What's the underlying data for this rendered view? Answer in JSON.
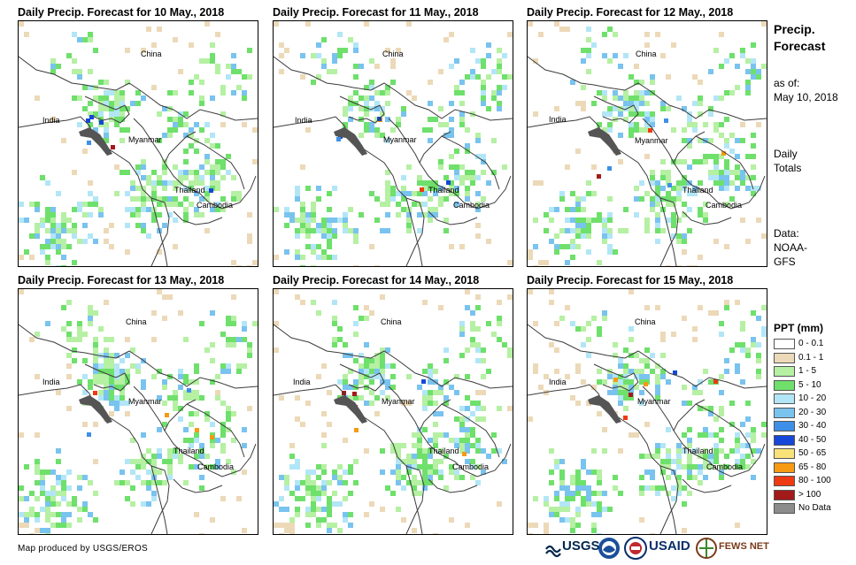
{
  "panels": [
    {
      "title": "Daily Precip. Forecast for 10 May., 2018"
    },
    {
      "title": "Daily Precip. Forecast for 11 May., 2018"
    },
    {
      "title": "Daily Precip. Forecast for 12 May., 2018"
    },
    {
      "title": "Daily Precip. Forecast for 13 May., 2018"
    },
    {
      "title": "Daily Precip. Forecast for 14 May., 2018"
    },
    {
      "title": "Daily Precip. Forecast for 15 May., 2018"
    }
  ],
  "map_labels": {
    "china": "China",
    "india": "India",
    "myanmar": "Myanmar",
    "thailand": "Thailand",
    "cambodia": "Cambodia"
  },
  "sidebar": {
    "title_line1": "Precip.",
    "title_line2": "Forecast",
    "asof_line1": "as of:",
    "asof_line2": "May 10, 2018",
    "totals_line1": "Daily",
    "totals_line2": "Totals",
    "data_line1": "Data:",
    "data_line2": "NOAA-",
    "data_line3": "GFS"
  },
  "legend": {
    "title": "PPT (mm)",
    "items": [
      {
        "label": "0 - 0.1",
        "color": "#ffffff"
      },
      {
        "label": "0.1 - 1",
        "color": "#ecd9b8"
      },
      {
        "label": "1 - 5",
        "color": "#b5f0a3"
      },
      {
        "label": "5 - 10",
        "color": "#6ee06b"
      },
      {
        "label": "10 - 20",
        "color": "#b2e6f7"
      },
      {
        "label": "20 - 30",
        "color": "#79c3ef"
      },
      {
        "label": "30 - 40",
        "color": "#3f8fe8"
      },
      {
        "label": "40 - 50",
        "color": "#1747d8"
      },
      {
        "label": "50 - 65",
        "color": "#f9e27a"
      },
      {
        "label": "65 - 80",
        "color": "#f59a12"
      },
      {
        "label": "80 - 100",
        "color": "#ee3a10"
      },
      {
        "label": "> 100",
        "color": "#a31a1a"
      },
      {
        "label": "No Data",
        "color": "#8c8c8c"
      }
    ]
  },
  "footer": {
    "credit": "Map produced by USGS/EROS",
    "logo_usgs": "USGS",
    "logo_usaid": "USAID",
    "logo_fews": "FEWS NET"
  },
  "colors": {
    "border": "#3c3c3c",
    "coast": "#555555"
  }
}
